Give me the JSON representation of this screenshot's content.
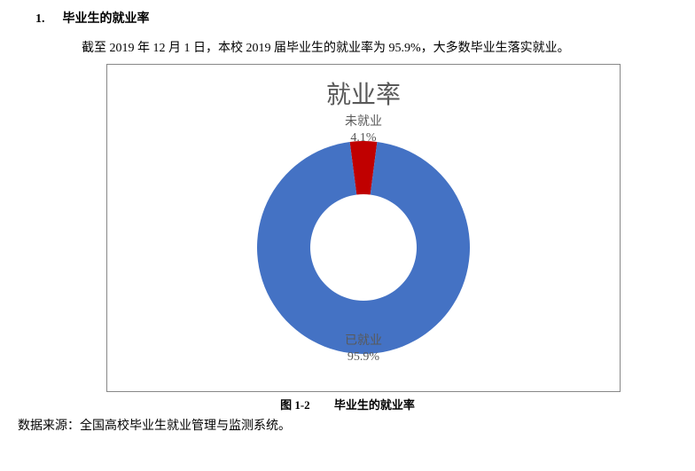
{
  "heading": {
    "number": "1.",
    "text": "毕业生的就业率"
  },
  "paragraph": "截至 2019 年 12 月 1 日，本校 2019 届毕业生的就业率为 95.9%，大多数毕业生落实就业。",
  "chart": {
    "type": "donut",
    "title": "就业率",
    "background_color": "#ffffff",
    "border_color": "#888888",
    "text_color": "#595959",
    "title_fontsize": 28,
    "label_fontsize": 14,
    "outer_radius_pct": 50,
    "inner_radius_pct": 25,
    "start_angle_deg": -90,
    "slices": [
      {
        "name": "已就业",
        "value": 95.9,
        "color": "#4472c4",
        "label_line1": "已就业",
        "label_line2": "95.9%",
        "label_position": "bottom"
      },
      {
        "name": "未就业",
        "value": 4.1,
        "color": "#c00000",
        "label_line1": "未就业",
        "label_line2": "4.1%",
        "label_position": "top"
      }
    ]
  },
  "figure_caption": {
    "number": "图 1-2",
    "text": "毕业生的就业率"
  },
  "source": "数据来源：全国高校毕业生就业管理与监测系统。"
}
